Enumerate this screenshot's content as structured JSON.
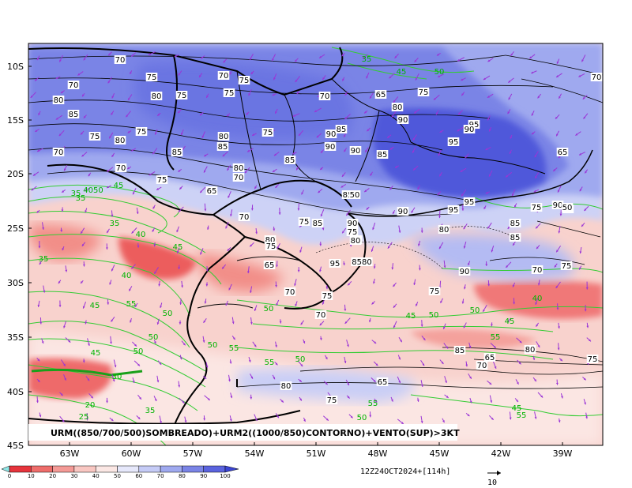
{
  "map": {
    "caption": "URM((850/700/500)SOMBREADO)+URM2((1000/850)CONTORNO)+VENTO(SUP)>3KT",
    "timestamp": "12Z24OCT2024+[114h]",
    "vector_ref": "10",
    "lat_labels": [
      "10S",
      "15S",
      "20S",
      "25S",
      "30S",
      "35S",
      "40S",
      "45S"
    ],
    "lon_labels": [
      "63W",
      "60W",
      "57W",
      "54W",
      "51W",
      "48W",
      "45W",
      "42W",
      "39W"
    ],
    "colorbar": {
      "ticks": [
        "0",
        "10",
        "20",
        "30",
        "40",
        "50",
        "60",
        "70",
        "80",
        "90",
        "100"
      ],
      "colors": [
        "#8fe8e8",
        "#e6343c",
        "#ee6d6b",
        "#f49a96",
        "#f9c7c2",
        "#fbe7e4",
        "#e6e8fb",
        "#c5cbf6",
        "#9fa9ef",
        "#7a84e6",
        "#5a63de",
        "#3b45d3"
      ]
    },
    "black_contour_labels": [
      "70",
      "75",
      "70",
      "75",
      "70",
      "70",
      "80",
      "75",
      "80",
      "75",
      "85",
      "65",
      "80",
      "75",
      "90",
      "75",
      "80",
      "90",
      "70",
      "75",
      "80",
      "75",
      "85",
      "85",
      "90",
      "85",
      "90",
      "95",
      "70",
      "80",
      "70",
      "85",
      "85",
      "95",
      "90",
      "75",
      "65",
      "85",
      "50",
      "90",
      "95",
      "95",
      "75",
      "90",
      "50",
      "70",
      "75",
      "85",
      "90",
      "75",
      "80",
      "85",
      "80",
      "80",
      "85",
      "85",
      "75",
      "65",
      "95",
      "8580",
      "70",
      "75",
      "70",
      "80",
      "75",
      "65",
      "85",
      "65",
      "70",
      "75",
      "80",
      "75",
      "90",
      "70",
      "75",
      "70",
      "65",
      "50"
    ],
    "green_contour_labels": [
      "35",
      "45",
      "50",
      "35",
      "4050",
      "45",
      "35",
      "35",
      "40",
      "45",
      "35",
      "40",
      "45",
      "55",
      "50",
      "50",
      "45",
      "50",
      "50",
      "55",
      "55",
      "50",
      "50",
      "45",
      "55",
      "40",
      "45",
      "50",
      "55",
      "30",
      "20",
      "35",
      "25",
      "50",
      "45",
      "50",
      "55"
    ],
    "colors": {
      "humid_high": "#4f58da",
      "humid_mid": "#8c96ec",
      "humid_low": "#cdd2f6",
      "dry_mid": "#f6b0aa",
      "dry_high": "#ec5c5c",
      "green_contour": "#33cc33",
      "wind_vector": "#9a35d6"
    }
  }
}
